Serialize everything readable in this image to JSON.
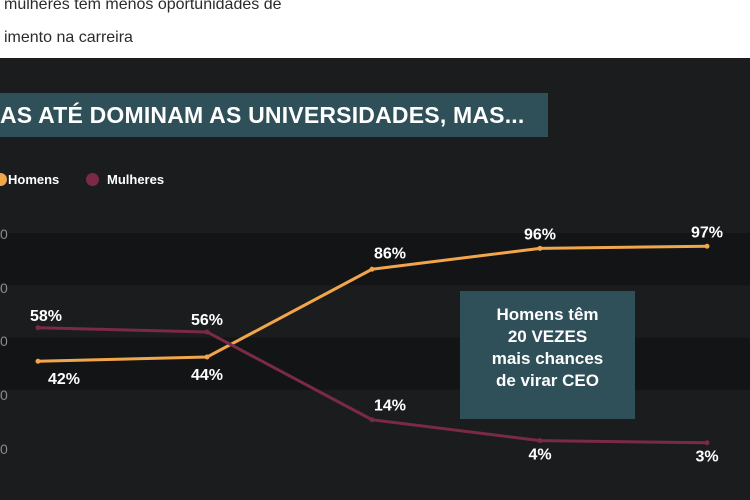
{
  "intro": {
    "line1": "mulheres têm menos oportunidades de",
    "line2": "imento na carreira"
  },
  "banner": {
    "text": "AS ATÉ DOMINAM AS UNIVERSIDADES, MAS..."
  },
  "callout": {
    "line1": "Homens têm",
    "line2": "20 VEZES",
    "line3": "mais chances",
    "line4": "de virar CEO"
  },
  "colors": {
    "background": "#1b1c1d",
    "band": "#131415",
    "men": "#f2a64c",
    "women": "#7a2a45",
    "callout": "#2f4f59"
  },
  "chart_data": {
    "type": "line",
    "title": "",
    "xlabel": "",
    "ylabel": "",
    "x": [
      1,
      2,
      3,
      4,
      5
    ],
    "ylim": [
      0,
      100
    ],
    "yticks": [
      "0",
      "0",
      "0",
      "0",
      "0"
    ],
    "legend": [
      "Homens",
      "Mulheres"
    ],
    "legend_position": "top-left",
    "grid": true,
    "series": [
      {
        "name": "Homens",
        "values": [
          42,
          44,
          86,
          96,
          97
        ],
        "labels": [
          "42%",
          "44%",
          "86%",
          "96%",
          "97%"
        ]
      },
      {
        "name": "Mulheres",
        "values": [
          58,
          56,
          14,
          4,
          3
        ],
        "labels": [
          "58%",
          "56%",
          "14%",
          "4%",
          "3%"
        ]
      }
    ]
  }
}
